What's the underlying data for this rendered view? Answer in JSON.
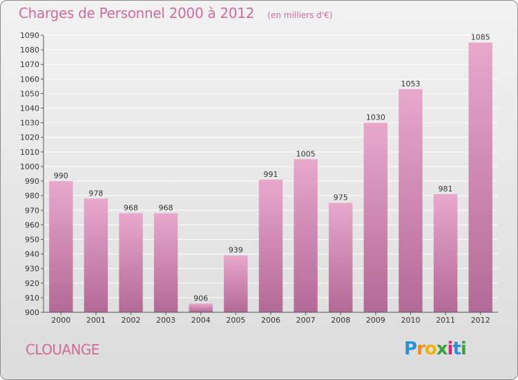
{
  "header": {
    "title": "Charges de Personnel 2000 à 2012",
    "subtitle": "(en milliers d'€)"
  },
  "footer": {
    "location": "CLOUANGE",
    "brand_letters": [
      "P",
      "r",
      "o",
      "x",
      "i",
      "t",
      "i"
    ]
  },
  "colors": {
    "bar_top": "#e8a8cc",
    "bar_bottom": "#b26a96",
    "title": "#d06a9c",
    "grid": "#ffffff"
  },
  "chart_data": {
    "type": "bar",
    "title": "Charges de Personnel 2000 à 2012",
    "subtitle": "(en milliers d'€)",
    "categories": [
      "2000",
      "2001",
      "2002",
      "2003",
      "2004",
      "2005",
      "2006",
      "2007",
      "2008",
      "2009",
      "2010",
      "2011",
      "2012"
    ],
    "values": [
      990,
      978,
      968,
      968,
      906,
      939,
      991,
      1005,
      975,
      1030,
      1053,
      981,
      1085
    ],
    "ylim": [
      900,
      1090
    ],
    "yticks": [
      900,
      910,
      920,
      930,
      940,
      950,
      960,
      970,
      980,
      990,
      1000,
      1010,
      1020,
      1030,
      1040,
      1050,
      1060,
      1070,
      1080,
      1090
    ],
    "grid": true,
    "xlabel": "",
    "ylabel": ""
  }
}
